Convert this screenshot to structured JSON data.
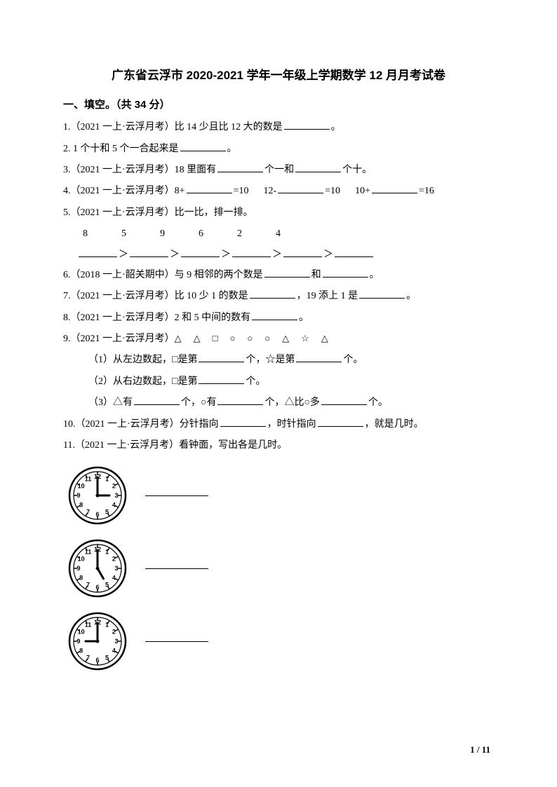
{
  "title": "广东省云浮市 2020-2021 学年一年级上学期数学 12 月月考试卷",
  "section": "一、填空。（共 34 分）",
  "tag_yf": "（2021 一上·云浮月考）",
  "tag_sg": "（2018 一上·韶关期中）",
  "q1_a": "1.",
  "q1_b": "比 14 少且比 12 大的数是",
  "period": "。",
  "q2_a": "2. 1 个十和 5 个一合起来是",
  "q3_a": "3.",
  "q3_b": "18 里面有",
  "q3_c": "个一和",
  "q3_d": "个十。",
  "q4_a": "4.",
  "q4_b": "8+",
  "q4_c": "=10",
  "q4_d": "12-",
  "q4_e": "=10",
  "q4_f": "10+",
  "q4_g": "=16",
  "q5_a": "5.",
  "q5_b": "比一比，排一排。",
  "nums": {
    "n1": "8",
    "n2": "5",
    "n3": "9",
    "n4": "6",
    "n5": "2",
    "n6": "4"
  },
  "gt": "＞",
  "q6_a": "6.",
  "q6_b": "与 9 相邻的两个数是",
  "q6_c": "和",
  "q7_a": "7.",
  "q7_b": "比 10 少 1 的数是",
  "q7_c": "，19 添上 1 是",
  "q8_a": "8.",
  "q8_b": "2 和 5 中间的数有",
  "q9_a": "9.",
  "q9_shapes": "△　△　□　○　○　○　△　☆　△",
  "q9_1a": "（1）从左边数起，□是第",
  "q9_1b": "个，☆是第",
  "q9_1c": "个。",
  "q9_2a": "（2）从右边数起，□是第",
  "q9_2b": "个。",
  "q9_3a": "（3）△有",
  "q9_3b": "个，○有",
  "q9_3c": "个，△比○多",
  "q9_3d": "个。",
  "q10_a": "10.",
  "q10_b": "分针指向",
  "q10_c": "，时针指向",
  "q10_d": "，就是几时。",
  "q11_a": "11.",
  "q11_b": "看钟面，写出各是几时。",
  "clocks": [
    {
      "hour": 3,
      "minute": 0
    },
    {
      "hour": 5,
      "minute": 0
    },
    {
      "hour": 9,
      "minute": 0
    }
  ],
  "pagenum": "1 / 11",
  "clock_style": {
    "size": 86,
    "stroke": "#000000",
    "fill": "#ffffff",
    "outer_r": 40,
    "inner_r": 34,
    "tick_len": 5,
    "num_r": 27,
    "num_fontsize": 9,
    "hour_len": 17,
    "min_len": 26,
    "hand_width": 3
  }
}
